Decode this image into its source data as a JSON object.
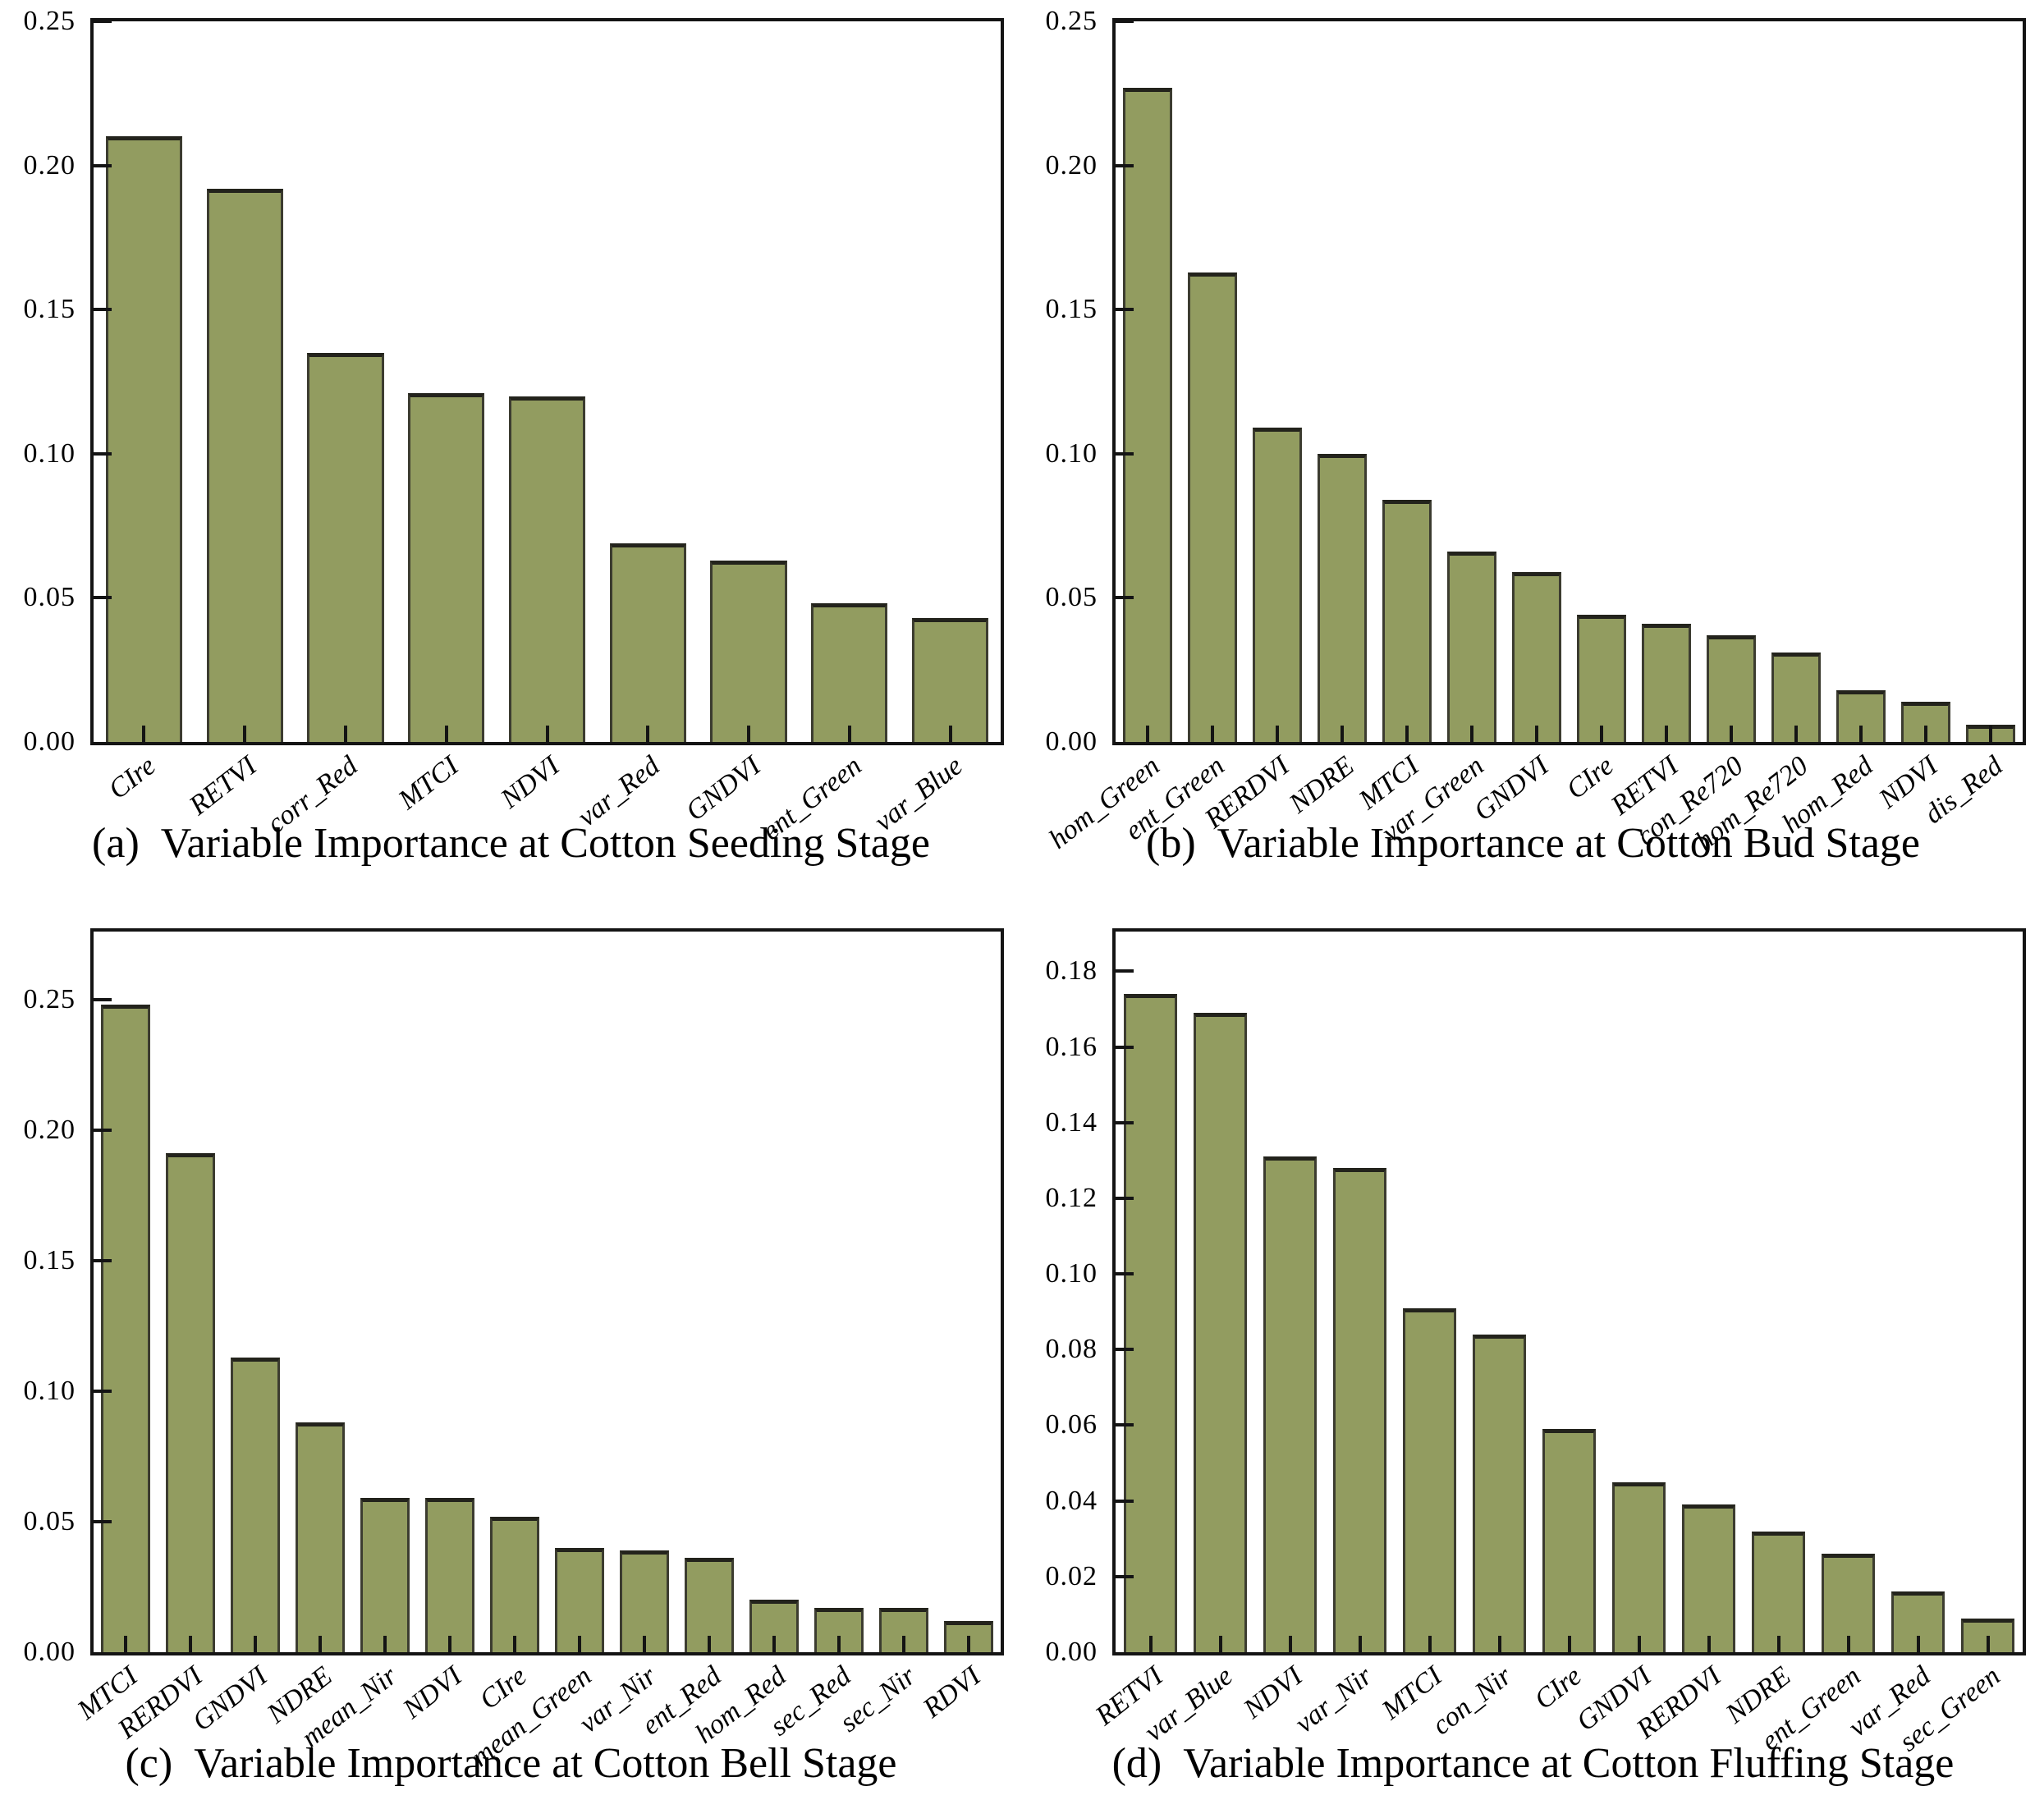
{
  "figure": {
    "background": "#ffffff",
    "n_panels": 4
  },
  "colors": {
    "bar_fill": "#929c60",
    "bar_edge": "#3c3c30",
    "bar_top_edge": "#23231c",
    "axis": "#141414",
    "text": "#000000"
  },
  "chart_data": [
    {
      "id": "a",
      "type": "bar",
      "caption_label": "(a)",
      "caption_text": "Variable Importance at Cotton Seeding Stage",
      "categories": [
        "CIre",
        "RETVI",
        "corr_Red",
        "MTCI",
        "NDVI",
        "var_Red",
        "GNDVI",
        "ent_Green",
        "var_Blue"
      ],
      "values": [
        0.21,
        0.192,
        0.135,
        0.121,
        0.12,
        0.069,
        0.063,
        0.048,
        0.043
      ],
      "xlabel": "",
      "ylabel": "",
      "yticks": [
        0,
        0.05,
        0.1,
        0.15,
        0.2,
        0.25
      ],
      "ylim": [
        0,
        0.25
      ],
      "axis_max": 0.25,
      "grid": false,
      "legend": "none"
    },
    {
      "id": "b",
      "type": "bar",
      "caption_label": "(b)",
      "caption_text": "Variable Importance at Cotton Bud Stage",
      "categories": [
        "hom_Green",
        "ent_Green",
        "RERDVI",
        "NDRE",
        "MTCI",
        "var_Green",
        "GNDVI",
        "CIre",
        "RETVI",
        "con_Re720",
        "hom_Re720",
        "hom_Red",
        "NDVI",
        "dis_Red"
      ],
      "values": [
        0.227,
        0.163,
        0.109,
        0.1,
        0.084,
        0.066,
        0.059,
        0.044,
        0.041,
        0.037,
        0.031,
        0.018,
        0.014,
        0.006
      ],
      "xlabel": "",
      "ylabel": "",
      "yticks": [
        0,
        0.05,
        0.1,
        0.15,
        0.2,
        0.25
      ],
      "ylim": [
        0,
        0.25
      ],
      "axis_max": 0.25,
      "grid": false,
      "legend": "none"
    },
    {
      "id": "c",
      "type": "bar",
      "caption_label": "(c)",
      "caption_text": "Variable Importance at Cotton Bell Stage",
      "categories": [
        "MTCI",
        "RERDVI",
        "GNDVI",
        "NDRE",
        "mean_Nir",
        "NDVI",
        "CIre",
        "mean_Green",
        "var_Nir",
        "ent_Red",
        "hom_Red",
        "sec_Red",
        "sec_Nir",
        "RDVI"
      ],
      "values": [
        0.248,
        0.191,
        0.113,
        0.088,
        0.059,
        0.059,
        0.052,
        0.04,
        0.039,
        0.036,
        0.02,
        0.017,
        0.017,
        0.012
      ],
      "xlabel": "",
      "ylabel": "",
      "yticks": [
        0,
        0.05,
        0.1,
        0.15,
        0.2,
        0.25
      ],
      "ylim": [
        0,
        0.276
      ],
      "axis_max": 0.276,
      "grid": false,
      "legend": "none"
    },
    {
      "id": "d",
      "type": "bar",
      "caption_label": "(d)",
      "caption_text": "Variable Importance at Cotton Fluffing Stage",
      "categories": [
        "RETVI",
        "var_Blue",
        "NDVI",
        "var_Nir",
        "MTCI",
        "con_Nir",
        "CIre",
        "GNDVI",
        "RERDVI",
        "NDRE",
        "ent_Green",
        "var_Red",
        "sec_Green"
      ],
      "values": [
        0.174,
        0.169,
        0.131,
        0.128,
        0.091,
        0.084,
        0.059,
        0.045,
        0.039,
        0.032,
        0.026,
        0.016,
        0.009
      ],
      "xlabel": "",
      "ylabel": "",
      "yticks": [
        0,
        0.02,
        0.04,
        0.06,
        0.08,
        0.1,
        0.12,
        0.14,
        0.16,
        0.18
      ],
      "ylim": [
        0,
        0.1905
      ],
      "axis_max": 0.1905,
      "grid": false,
      "legend": "none"
    }
  ]
}
